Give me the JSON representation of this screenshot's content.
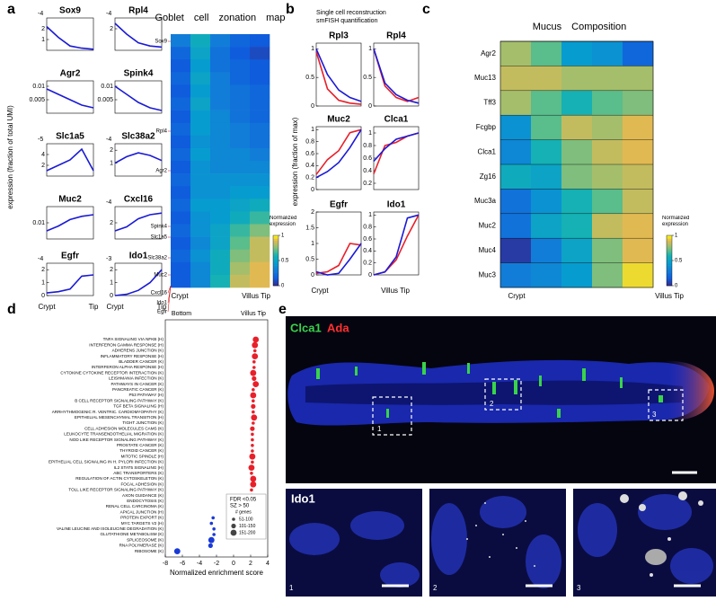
{
  "panel_labels": [
    "a",
    "b",
    "c",
    "d",
    "e"
  ],
  "chart_data": [
    {
      "type": "small_multiples",
      "y_label": "expression (fraction of total UMI)",
      "x_labels": [
        "Crypt",
        "Tip"
      ],
      "color": "#1a1ad6",
      "panels": [
        {
          "title": "Sox9",
          "exponent": "-4",
          "values": [
            2.2,
            1.2,
            0.4,
            0.2,
            0.1
          ],
          "ylim": [
            0,
            3
          ],
          "yticks": [
            1,
            2
          ]
        },
        {
          "title": "Rpl4",
          "exponent": "-4",
          "values": [
            2.5,
            1.5,
            0.7,
            0.4,
            0.3
          ],
          "ylim": [
            0,
            3
          ],
          "yticks": [
            2
          ]
        },
        {
          "title": "Agr2",
          "values": [
            0.009,
            0.007,
            0.005,
            0.003,
            0.002
          ],
          "ylim": [
            0,
            0.012
          ],
          "yticks": [
            0.005,
            0.01
          ]
        },
        {
          "title": "Spink4",
          "values": [
            0.01,
            0.007,
            0.004,
            0.002,
            0.001
          ],
          "ylim": [
            0,
            0.012
          ],
          "yticks": [
            0.005,
            0.01
          ]
        },
        {
          "title": "Slc1a5",
          "exponent": "-5",
          "values": [
            1,
            2,
            3,
            5,
            1
          ],
          "ylim": [
            0,
            6
          ],
          "yticks": [
            2,
            4
          ]
        },
        {
          "title": "Slc38a2",
          "exponent": "-4",
          "values": [
            1,
            1.5,
            1.8,
            1.6,
            1.2
          ],
          "ylim": [
            0,
            2.5
          ],
          "yticks": [
            1,
            2
          ]
        },
        {
          "title": "Muc2",
          "values": [
            0.005,
            0.008,
            0.012,
            0.014,
            0.015
          ],
          "ylim": [
            0,
            0.02
          ],
          "yticks": [
            0.01
          ]
        },
        {
          "title": "Cxcl16",
          "exponent": "-4",
          "values": [
            1,
            1.5,
            2.5,
            3,
            3.2
          ],
          "ylim": [
            0,
            4
          ],
          "yticks": [
            2
          ]
        },
        {
          "title": "Egfr",
          "exponent": "-4",
          "values": [
            0.2,
            0.3,
            0.5,
            1.5,
            1.6
          ],
          "ylim": [
            0,
            2.5
          ],
          "yticks": [
            0,
            1,
            2
          ]
        },
        {
          "title": "Ido1",
          "exponent": "-3",
          "values": [
            0,
            0.1,
            0.4,
            1,
            2
          ],
          "ylim": [
            0,
            2.5
          ],
          "yticks": [
            0,
            1,
            2
          ]
        }
      ]
    },
    {
      "type": "heatmap",
      "title": "Goblet cell zonation map",
      "row_labels": [
        "Sox9",
        "Rpl4",
        "Agr2",
        "Spink4",
        "Slc1a5",
        "Slc38a2",
        "Muc2",
        "Cxcl16",
        "Ido1",
        "Egfr"
      ],
      "x_labels": [
        "Crypt",
        "Villus Tip"
      ],
      "matrix": [
        [
          0.3,
          0.55,
          0.3,
          0.2,
          0.15
        ],
        [
          0.2,
          0.5,
          0.25,
          0.15,
          0.1
        ],
        [
          0.15,
          0.45,
          0.25,
          0.2,
          0.15
        ],
        [
          0.2,
          0.5,
          0.3,
          0.2,
          0.15
        ],
        [
          0.15,
          0.45,
          0.3,
          0.25,
          0.2
        ],
        [
          0.2,
          0.5,
          0.3,
          0.25,
          0.2
        ],
        [
          0.15,
          0.45,
          0.35,
          0.25,
          0.2
        ],
        [
          0.2,
          0.45,
          0.35,
          0.3,
          0.25
        ],
        [
          0.15,
          0.4,
          0.35,
          0.3,
          0.25
        ],
        [
          0.2,
          0.45,
          0.35,
          0.35,
          0.3
        ],
        [
          0.15,
          0.4,
          0.35,
          0.35,
          0.35
        ],
        [
          0.2,
          0.4,
          0.4,
          0.4,
          0.4
        ],
        [
          0.15,
          0.4,
          0.4,
          0.45,
          0.45
        ],
        [
          0.2,
          0.45,
          0.45,
          0.5,
          0.55
        ],
        [
          0.15,
          0.4,
          0.45,
          0.55,
          0.65
        ],
        [
          0.2,
          0.4,
          0.5,
          0.65,
          0.75
        ],
        [
          0.15,
          0.35,
          0.5,
          0.7,
          0.85
        ],
        [
          0.2,
          0.4,
          0.55,
          0.75,
          0.85
        ],
        [
          0.15,
          0.35,
          0.55,
          0.8,
          0.9
        ],
        [
          0.15,
          0.35,
          0.6,
          0.85,
          0.9
        ]
      ],
      "colorbar": {
        "label": "Normalized expression",
        "lim": [
          0,
          1
        ],
        "ticks": [
          0,
          0.5,
          1
        ]
      }
    },
    {
      "type": "small_multiples",
      "y_label": "expression (fraction of max)",
      "x_labels": [
        "Crypt",
        "Villus Tip"
      ],
      "series": [
        {
          "name": "Single cell reconstruction",
          "color": "#e8202a"
        },
        {
          "name": "smFISH quantification",
          "color": "#1a1ad6"
        }
      ],
      "panels": [
        {
          "title": "Rpl3",
          "values": [
            [
              0.95,
              0.3,
              0.1,
              0.05,
              0.03
            ],
            [
              1.0,
              0.55,
              0.28,
              0.15,
              0.08
            ]
          ],
          "ylim": [
            0,
            1.1
          ],
          "yticks": [
            0,
            0.5,
            1
          ]
        },
        {
          "title": "Rpl4",
          "values": [
            [
              1.0,
              0.35,
              0.15,
              0.08,
              0.15
            ],
            [
              1.0,
              0.4,
              0.2,
              0.1,
              0.05
            ]
          ],
          "ylim": [
            0,
            1.1
          ],
          "yticks": [
            0,
            0.5,
            1
          ]
        },
        {
          "title": "Muc2",
          "values": [
            [
              0.25,
              0.5,
              0.65,
              0.95,
              1.0
            ],
            [
              0.2,
              0.3,
              0.45,
              0.7,
              1.0
            ]
          ],
          "ylim": [
            0,
            1.05
          ],
          "yticks": [
            0,
            0.2,
            0.4,
            0.6,
            0.8,
            1
          ]
        },
        {
          "title": "Clca1",
          "values": [
            [
              0.35,
              0.8,
              0.85,
              0.95,
              1.0
            ],
            [
              0.55,
              0.75,
              0.9,
              0.95,
              1.0
            ]
          ],
          "ylim": [
            0.1,
            1.1
          ],
          "yticks": [
            0.2,
            0.4,
            0.6,
            0.8,
            1
          ]
        },
        {
          "title": "Egfr",
          "values": [
            [
              0.05,
              0.1,
              0.3,
              1.0,
              0.95
            ],
            [
              0.1,
              0.0,
              0.05,
              0.5,
              1.0
            ]
          ],
          "ylim": [
            0,
            2
          ],
          "yticks": [
            0,
            0.5,
            1,
            1.5,
            2
          ]
        },
        {
          "title": "Ido1",
          "values": [
            [
              0,
              0.05,
              0.25,
              0.65,
              1.0
            ],
            [
              0,
              0.05,
              0.3,
              0.95,
              1.0
            ]
          ],
          "ylim": [
            0,
            1.05
          ],
          "yticks": [
            0,
            0.2,
            0.4,
            0.6,
            0.8,
            1
          ]
        }
      ]
    },
    {
      "type": "heatmap",
      "title": "Mucus Composition",
      "row_labels": [
        "Agr2",
        "Muc13",
        "Tff3",
        "Fcgbp",
        "Clca1",
        "Zg16",
        "Muc3a",
        "Muc2",
        "Muc4",
        "Muc3"
      ],
      "x_labels": [
        "Crypt",
        "Villus Tip"
      ],
      "matrix": [
        [
          0.8,
          0.7,
          0.45,
          0.4,
          0.2
        ],
        [
          0.85,
          0.85,
          0.8,
          0.8,
          0.8
        ],
        [
          0.8,
          0.7,
          0.6,
          0.7,
          0.75
        ],
        [
          0.4,
          0.7,
          0.85,
          0.8,
          0.9
        ],
        [
          0.35,
          0.6,
          0.75,
          0.85,
          0.9
        ],
        [
          0.55,
          0.5,
          0.75,
          0.8,
          0.85
        ],
        [
          0.25,
          0.4,
          0.6,
          0.7,
          0.85
        ],
        [
          0.25,
          0.5,
          0.6,
          0.85,
          0.9
        ],
        [
          0.05,
          0.3,
          0.5,
          0.75,
          0.9
        ],
        [
          0.3,
          0.35,
          0.45,
          0.75,
          0.95
        ]
      ],
      "colorbar": {
        "label": "Normalized expression",
        "lim": [
          0,
          1
        ],
        "ticks": [
          0,
          0.5,
          1
        ]
      }
    },
    {
      "type": "dot",
      "top_labels": [
        "Bottom",
        "Villus Tip"
      ],
      "x_label": "Normalized enrichment score",
      "categories": [
        "TNFA SIGNALING VIA NFKB (H)",
        "INTERFERON GAMMA RESPONSE (H)",
        "ADHERENS JUNCTION (K)",
        "INFLAMMATORY RESPONSE (H)",
        "BLADDER CANCER (K)",
        "INTERFERON ALPHA RESPONSE (H)",
        "CYTOKINE CYTOKINE RECEPTOR INTERACTION (K)",
        "LEISHMANIA INFECTION (K)",
        "PATHWAYS IN CANCER (K)",
        "PANCREATIC CANCER (K)",
        "P53 PATHWAY (H)",
        "B CELL RECEPTOR SIGNALING PATHWAY (K)",
        "TGF BETA SIGNALING (H)",
        "ARRHYTHMOGENIC R. VENTRIC. CARDIOMYOPATHY (K)",
        "EPITHELIAL MESENCHYMAL TRANSITION (H)",
        "TIGHT JUNCTION (K)",
        "CELL ADHESION MOLECULES CAMS (K)",
        "LEUKOCYTE TRANSENDOTHELIAL MIGRATION (K)",
        "NOD LIKE RECEPTOR SIGNALING PATHWAY (K)",
        "PROSTATE CANCER (K)",
        "THYROID CANCER (K)",
        "MITOTIC SPINDLE (H)",
        "EPITHELIAL CELL SIGNALING IN H. PYLORI INFECTION (K)",
        "IL2 STAT5 SIGNALING (H)",
        "ABC TRANSPORTERS (K)",
        "REGULATION OF ACTIN CYTOSKELETON (K)",
        "FOCAL ADHESION (K)",
        "TOLL LIKE RECEPTOR SIGNALING PATHWAY (K)",
        "AXON GUIDANCE (K)",
        "ENDOCYTOSIS (K)",
        "RENAL CELL CARCINOMA (K)",
        "APICAL JUNCTION (H)",
        "PROTEIN EXPORT (K)",
        "MYC TARGETS V2 (H)",
        "VALINE LEUCINE AND ISOLEUCINE DEGRADATION (K)",
        "GLUTATHIONE METABOLISM (K)",
        "SPLICEOSOME (K)",
        "RNA POLYMERASE (K)",
        "RIBOSOME (K)"
      ],
      "series": [
        {
          "color": "#e8202a",
          "values": [
            2.6,
            2.5,
            2.5,
            2.5,
            2.4,
            2.4,
            2.3,
            2.4,
            2.6,
            2.3,
            2.3,
            2.3,
            2.3,
            2.3,
            2.4,
            2.3,
            2.2,
            2.2,
            2.2,
            2.2,
            2.2,
            2.2,
            2.2,
            2.1,
            2.1,
            2.3,
            2.3,
            2.1,
            2.1,
            2.2,
            2.0,
            2.0,
            null,
            null,
            null,
            null,
            null,
            null,
            null
          ]
        },
        {
          "color": "#1a3ad6",
          "values": [
            null,
            null,
            null,
            null,
            null,
            null,
            null,
            null,
            null,
            null,
            null,
            null,
            null,
            null,
            null,
            null,
            null,
            null,
            null,
            null,
            null,
            null,
            null,
            null,
            null,
            null,
            null,
            null,
            null,
            null,
            null,
            null,
            -2.4,
            -2.6,
            -2.3,
            -2.3,
            -2.6,
            -2.7,
            -6.6
          ]
        }
      ],
      "sizes": [
        200,
        175,
        90,
        175,
        80,
        90,
        175,
        120,
        200,
        90,
        175,
        80,
        120,
        90,
        175,
        90,
        120,
        90,
        80,
        80,
        80,
        175,
        80,
        175,
        80,
        175,
        175,
        80,
        90,
        175,
        80,
        175,
        80,
        80,
        80,
        80,
        175,
        120,
        175
      ],
      "xlim": [
        -8,
        4
      ],
      "xticks": [
        -8,
        -6,
        -4,
        -2,
        0,
        2,
        4
      ],
      "legend": {
        "lines": [
          "FDR <0.05",
          "SZ > 50"
        ],
        "size_title": "# genes",
        "size_labels": [
          "51-100",
          "101-150",
          "151-200"
        ]
      }
    }
  ],
  "panel_e": {
    "stains": [
      {
        "text": "Clca1",
        "color": "#39d34a"
      },
      {
        "text": "Ada",
        "color": "#ff3030"
      }
    ],
    "inset_stain": "Ido1",
    "insets": [
      "1",
      "2",
      "3"
    ]
  }
}
